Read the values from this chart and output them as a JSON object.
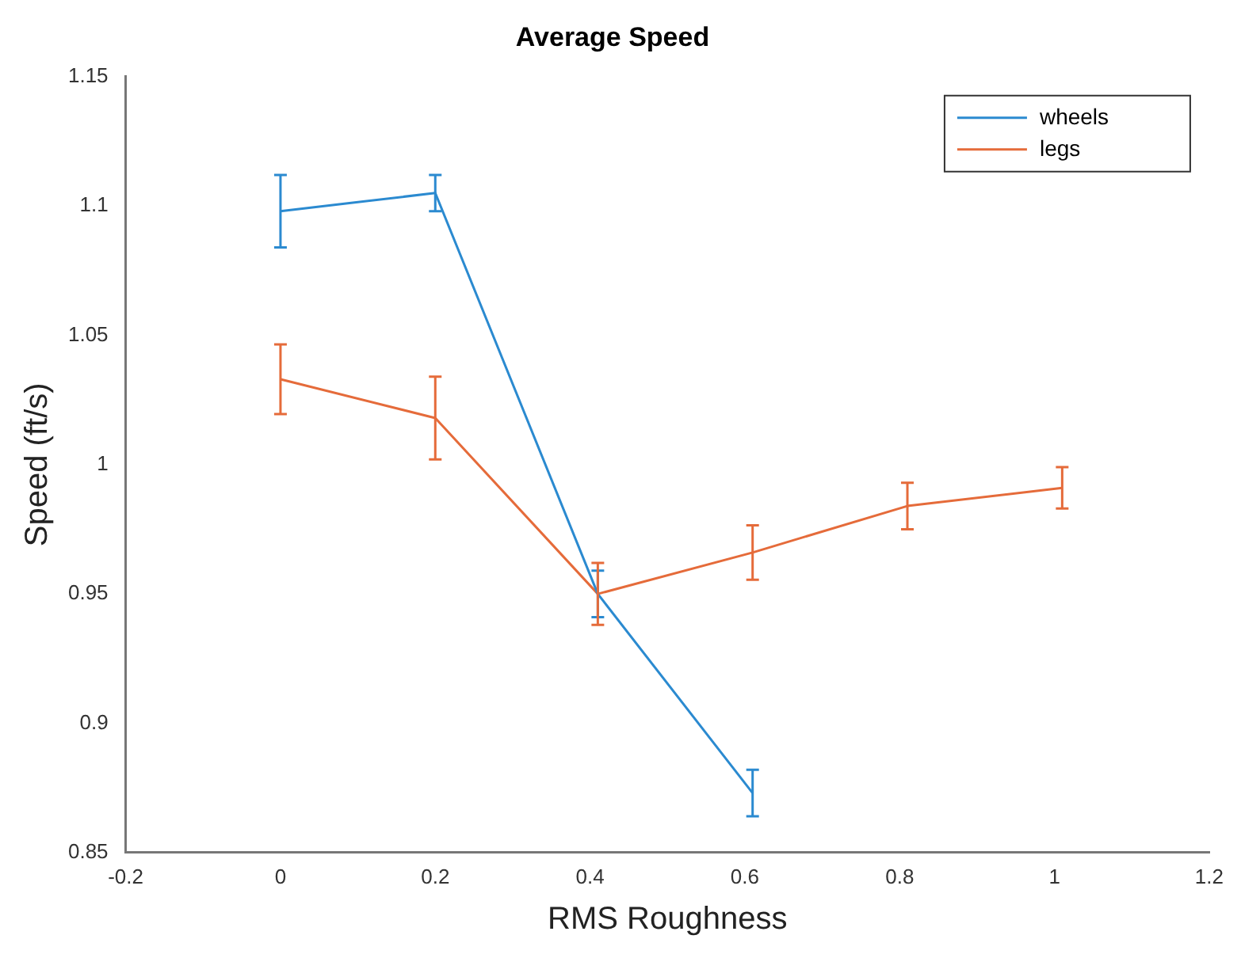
{
  "chart_data": {
    "type": "line",
    "title": "Average Speed",
    "xlabel": "RMS Roughness",
    "ylabel": "Speed (ft/s)",
    "xlim": [
      -0.2,
      1.2
    ],
    "xticks": [
      -0.2,
      0,
      0.2,
      0.4,
      0.6,
      0.8,
      1,
      1.2
    ],
    "ylim": [
      0.85,
      1.15
    ],
    "yticks": [
      0.85,
      0.9,
      0.95,
      1,
      1.05,
      1.1,
      1.15
    ],
    "grid": false,
    "legend": "top right",
    "marker": "none",
    "line_style": "solid",
    "series": [
      {
        "name": "wheels",
        "color": "#2b8ad0",
        "x": [
          0,
          0.2,
          0.41,
          0.61
        ],
        "values": [
          1.098,
          1.105,
          0.95,
          0.873
        ],
        "errors": [
          0.014,
          0.007,
          0.009,
          0.009
        ]
      },
      {
        "name": "legs",
        "color": "#e56b3a",
        "x": [
          0,
          0.2,
          0.41,
          0.61,
          0.81,
          1.01
        ],
        "values": [
          1.033,
          1.018,
          0.95,
          0.966,
          0.984,
          0.991
        ],
        "errors": [
          0.0135,
          0.016,
          0.012,
          0.0105,
          0.009,
          0.008
        ]
      }
    ]
  }
}
